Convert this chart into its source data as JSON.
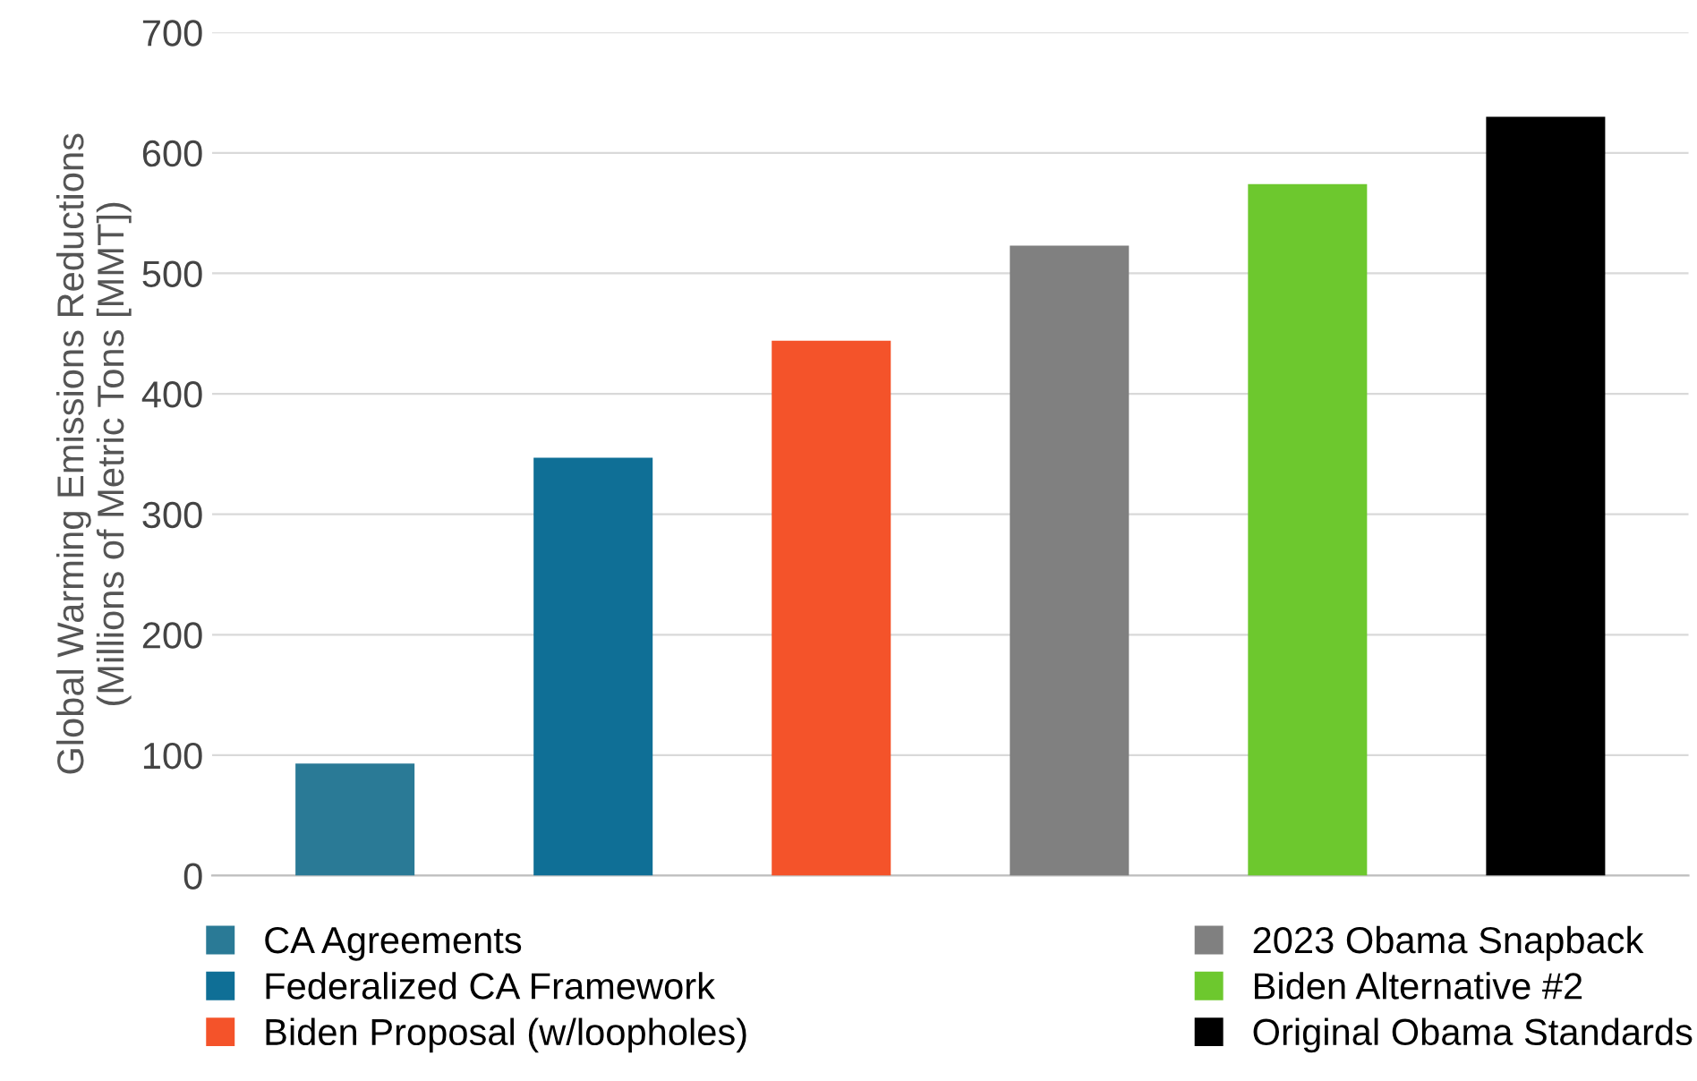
{
  "chart_data": {
    "type": "bar",
    "ylabel": "Global Warming Emissions Reductions\n(Millions of Metric Tons [MMT])",
    "categories": [
      null,
      null,
      null,
      null,
      null,
      null
    ],
    "series": [
      {
        "name": "CA Agreements",
        "color": "#2a7a96",
        "values": [
          93,
          null,
          null,
          null,
          null,
          null
        ]
      },
      {
        "name": "Federalized CA Framework",
        "color": "#0f6f96",
        "values": [
          null,
          347,
          null,
          null,
          null,
          null
        ]
      },
      {
        "name": "Biden Proposal (w/loopholes)",
        "color": "#f4532a",
        "values": [
          null,
          null,
          444,
          null,
          null,
          null
        ]
      },
      {
        "name": "2023 Obama Snapback",
        "color": "#808080",
        "values": [
          null,
          null,
          null,
          523,
          null,
          null
        ]
      },
      {
        "name": "Biden Alternative #2",
        "color": "#6dc82e",
        "values": [
          null,
          null,
          null,
          null,
          574,
          null
        ]
      },
      {
        "name": "Original Obama Standards",
        "color": "#000000",
        "values": [
          null,
          null,
          null,
          null,
          null,
          630
        ]
      }
    ],
    "ylim": [
      0,
      700
    ],
    "yticks": [
      0,
      100,
      200,
      300,
      400,
      500,
      600,
      700
    ],
    "grid": "y",
    "legend": "bottom"
  }
}
